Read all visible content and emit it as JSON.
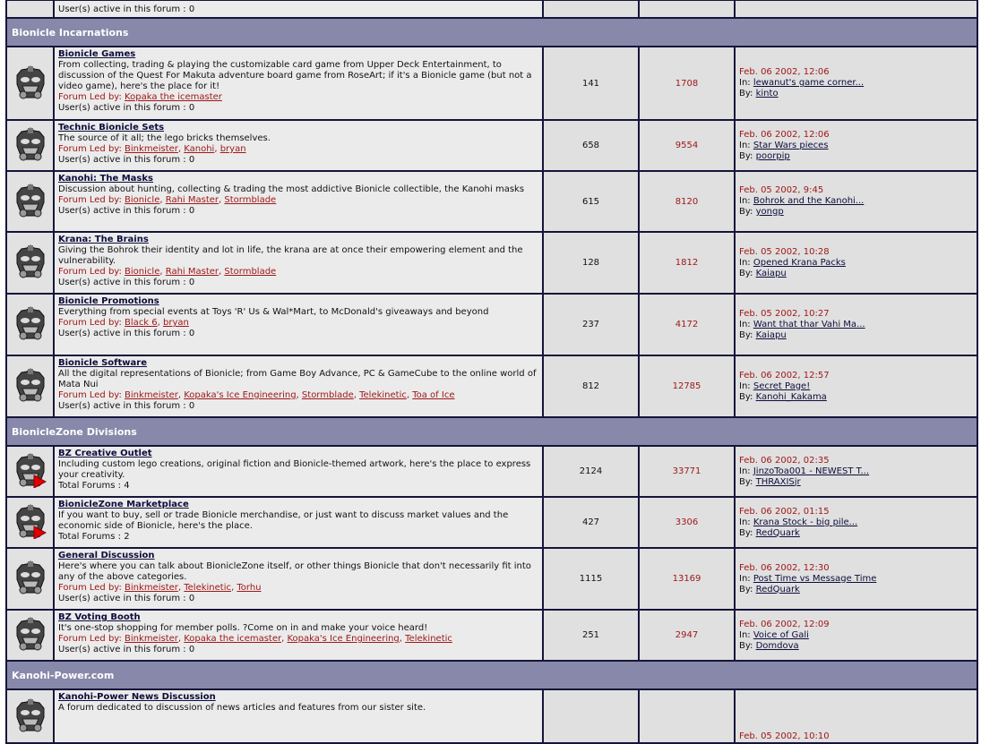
{
  "labels": {
    "led_by": "Forum Led by: ",
    "active": "User(s) active in this forum : ",
    "total_forums": "Total Forums : ",
    "in": "In: ",
    "by": "By: "
  },
  "colors": {
    "category_bg": "#8888aa",
    "border": "#15153a",
    "accent_red": "#a01818",
    "link": "#0c0c3c"
  },
  "top_partial": {
    "active": "0"
  },
  "sections": [
    {
      "category": "Bionicle Incarnations",
      "forums": [
        {
          "icon": "mask-icon",
          "title": "Bionicle Games",
          "desc": "From collecting, trading & playing the customizable card game from Upper Deck Entertainment, to discussion of the Quest For Makuta adventure board game from RoseArt; if it's a Bionicle game (but not a video game), here's the place for it!",
          "leaders": [
            "Kopaka the icemaster"
          ],
          "active": "0",
          "topics": "141",
          "posts": "1708",
          "last_date": "Feb. 06 2002, 12:06",
          "last_in": "lewanut's game corner...",
          "last_by": "kinto"
        },
        {
          "icon": "mask-icon",
          "title": "Technic Bionicle Sets",
          "desc": "The source of it all; the lego bricks themselves.",
          "leaders": [
            "Binkmeister",
            "Kanohi",
            "bryan"
          ],
          "active": "0",
          "topics": "658",
          "posts": "9554",
          "last_date": "Feb. 06 2002, 12:06",
          "last_in": "Star Wars pieces",
          "last_by": "poorpip"
        },
        {
          "icon": "mask-icon",
          "title": "Kanohi: The Masks",
          "desc": "Discussion about hunting, collecting & trading the most addictive Bionicle collectible, the Kanohi masks",
          "leaders": [
            "Bionicle",
            "Rahi Master",
            "Stormblade"
          ],
          "active": "0",
          "topics": "615",
          "posts": "8120",
          "last_date": "Feb. 05 2002, 9:45",
          "last_in": "Bohrok and the Kanohi...",
          "last_by": "yongp"
        },
        {
          "icon": "mask-icon",
          "title": "Krana: The Brains",
          "desc": "Giving the Bohrok their identity and lot in life, the krana are at once their empowering element and the vulnerability.",
          "leaders": [
            "Bionicle",
            "Rahi Master",
            "Stormblade"
          ],
          "active": "0",
          "topics": "128",
          "posts": "1812",
          "last_date": "Feb. 05 2002, 10:28",
          "last_in": "Opened Krana Packs",
          "last_by": "Kaiapu"
        },
        {
          "icon": "mask-icon",
          "title": "Bionicle Promotions",
          "desc": "Everything from special events at Toys 'R' Us & Wal*Mart, to McDonald's giveaways and beyond",
          "leaders": [
            "Black 6",
            "bryan"
          ],
          "active": "0",
          "topics": "237",
          "posts": "4172",
          "last_date": "Feb. 05 2002, 10:27",
          "last_in": "Want that thar Vahi Ma...",
          "last_by": "Kaiapu"
        },
        {
          "icon": "mask-icon",
          "title": "Bionicle Software",
          "desc": "All the digital representations of Bionicle; from Game Boy Advance, PC & GameCube to the online world of Mata Nui",
          "leaders": [
            "Binkmeister",
            "Kopaka's Ice Engineering",
            "Stormblade",
            "Telekinetic",
            "Toa of Ice"
          ],
          "active": "0",
          "topics": "812",
          "posts": "12785",
          "last_date": "Feb. 06 2002, 12:57",
          "last_in": "Secret Page!",
          "last_by": "Kanohi_Kakama"
        }
      ]
    },
    {
      "category": "BionicleZone Divisions",
      "forums": [
        {
          "icon": "mask-subforum-icon",
          "title": "BZ Creative Outlet",
          "desc": "Including custom lego creations, original fiction and Bionicle-themed artwork, here's the place to express your creativity.",
          "total_forums": "4",
          "topics": "2124",
          "posts": "33771",
          "last_date": "Feb. 06 2002, 02:35",
          "last_in": "JinzoToa001 - NEWEST T...",
          "last_by": "THRAXISjr"
        },
        {
          "icon": "mask-subforum-icon",
          "title": "BionicleZone Marketplace",
          "desc": "If you want to buy, sell or trade Bionicle merchandise, or just want to discuss market values and the economic side of Bionicle, here's the place.",
          "total_forums": "2",
          "topics": "427",
          "posts": "3306",
          "last_date": "Feb. 06 2002, 01:15",
          "last_in": "Krana Stock - big pile...",
          "last_by": "RedQuark"
        },
        {
          "icon": "mask-icon",
          "title": "General Discussion",
          "desc": "Here's where you can talk about BionicleZone itself, or other things Bionicle that don't necessarily fit into any of the above categories.",
          "leaders": [
            "Binkmeister",
            "Telekinetic",
            "Torhu"
          ],
          "active": "0",
          "topics": "1115",
          "posts": "13169",
          "last_date": "Feb. 06 2002, 12:30",
          "last_in": "Post Time vs Message Time",
          "last_by": "RedQuark"
        },
        {
          "icon": "mask-icon",
          "title": "BZ Voting Booth",
          "desc": "It's one-stop shopping for member polls. ?Come on in and make your voice heard!",
          "leaders": [
            "Binkmeister",
            "Kopaka the icemaster",
            "Kopaka's Ice Engineering",
            "Telekinetic"
          ],
          "active": "0",
          "topics": "251",
          "posts": "2947",
          "last_date": "Feb. 06 2002, 12:09",
          "last_in": "Voice of Gali",
          "last_by": "Domdova"
        }
      ]
    },
    {
      "category": "Kanohi-Power.com",
      "forums": [
        {
          "icon": "mask-icon",
          "title": "Kanohi-Power News Discussion",
          "desc": "A forum dedicated to discussion of news articles and features from our sister site.",
          "topics": "",
          "posts": "",
          "last_date": "Feb. 05 2002, 10:10"
        }
      ]
    }
  ]
}
